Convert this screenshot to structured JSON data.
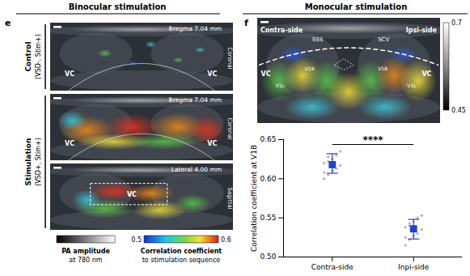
{
  "headers": [
    "Binocular stimulation",
    "Monocular stimulation"
  ],
  "panel_e": {
    "label": "e",
    "groups": [
      {
        "title": "Control",
        "subtitle": "(VSD-, Stim+)"
      },
      {
        "title": "Stimulation",
        "subtitle": "(VSD+, Stim+)"
      }
    ],
    "images": [
      {
        "group": "Control",
        "section": "Bregma 7.04 mm",
        "plane": "Coronal",
        "regions": [
          "VC",
          "VC"
        ]
      },
      {
        "group": "Stimulation",
        "section": "Bregma 7.04 mm",
        "plane": "Coronal",
        "regions": [
          "VC",
          "VC"
        ]
      },
      {
        "group": "Stimulation",
        "section": "Lateral 4.00 mm",
        "plane": "Sagittal",
        "regions": [
          "VC"
        ]
      }
    ],
    "colorbars": [
      {
        "label": [
          "PA amplitude",
          "at 780 nm"
        ]
      },
      {
        "label": [
          "Correlation coefficient",
          "to stimulation sequence"
        ],
        "range": [
          0.5,
          0.6
        ],
        "ticks": [
          0.5,
          0.6
        ]
      }
    ]
  },
  "panel_f": {
    "label": "f",
    "image": {
      "sides": [
        "Contra-side",
        "Ipsi-side"
      ],
      "vessels": [
        "SSS",
        "SCV"
      ],
      "regions": [
        "VC",
        "V1L",
        "V1B",
        "V1B",
        "V1L",
        "VC"
      ]
    },
    "colorbar": {
      "range": [
        0.45,
        0.7
      ],
      "ticks": [
        0.7,
        0.45
      ]
    }
  },
  "chart_data": {
    "type": "dot",
    "categories": [
      "Contra-side",
      "Inpi-side"
    ],
    "values": [
      0.618,
      0.536
    ],
    "error_range": [
      [
        0.607,
        0.632
      ],
      [
        0.523,
        0.548
      ]
    ],
    "points": [
      [
        0.6,
        0.605,
        0.61,
        0.613,
        0.617,
        0.62,
        0.622,
        0.625,
        0.63,
        0.635,
        0.608,
        0.628
      ],
      [
        0.515,
        0.522,
        0.527,
        0.53,
        0.535,
        0.538,
        0.54,
        0.545,
        0.55,
        0.553,
        0.525,
        0.543
      ]
    ],
    "color": "#1f43d6",
    "marker": "square",
    "ylabel": "Correlation coefficient at V1B",
    "ylim": [
      0.5,
      0.65
    ],
    "yticks": [
      {
        "value": 0.5,
        "label": "0.50"
      },
      {
        "value": 0.55,
        "label": "0.55"
      },
      {
        "value": 0.6,
        "label": "0.60"
      },
      {
        "value": 0.65,
        "label": "0.65"
      }
    ],
    "annotations": [
      {
        "text": "****",
        "between": [
          "Contra-side",
          "Inpi-side"
        ]
      }
    ]
  }
}
